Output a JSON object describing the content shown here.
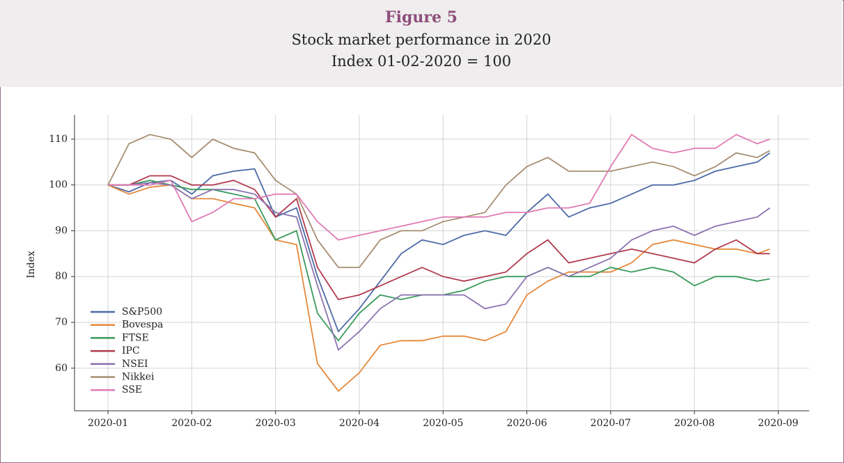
{
  "chart_data": {
    "type": "line",
    "title": "Figure 5",
    "subtitle": "Stock market performance in 2020",
    "subtitle_2": "Index 01-02-2020 = 100",
    "y_label": "Index",
    "grid": true,
    "legend": "lower left",
    "x": [
      1,
      1.25,
      1.5,
      1.75,
      2,
      2.25,
      2.5,
      2.75,
      3,
      3.25,
      3.5,
      3.75,
      4,
      4.25,
      4.5,
      4.75,
      5,
      5.25,
      5.5,
      5.75,
      6,
      6.25,
      6.5,
      6.75,
      7,
      7.25,
      7.5,
      7.75,
      8,
      8.25,
      8.5,
      8.75,
      8.9
    ],
    "xlim": [
      0.6,
      9.37
    ],
    "xticks": [
      {
        "value": 1,
        "label": "2020-01"
      },
      {
        "value": 2,
        "label": "2020-02"
      },
      {
        "value": 3,
        "label": "2020-03"
      },
      {
        "value": 4,
        "label": "2020-04"
      },
      {
        "value": 5,
        "label": "2020-05"
      },
      {
        "value": 6,
        "label": "2020-06"
      },
      {
        "value": 7,
        "label": "2020-07"
      },
      {
        "value": 8,
        "label": "2020-08"
      },
      {
        "value": 9,
        "label": "2020-09"
      }
    ],
    "ylim": [
      50.7,
      115.3
    ],
    "yticks": [
      60,
      70,
      80,
      90,
      100,
      110
    ],
    "series": [
      {
        "name": "S&P500",
        "color": "#4c6aa6",
        "values": [
          100,
          98.5,
          100.5,
          101,
          98,
          102,
          103,
          103.5,
          93,
          95,
          80,
          68,
          73,
          79,
          85,
          88,
          87,
          89,
          90,
          89,
          94,
          98,
          93,
          95,
          96,
          98,
          100,
          100,
          101,
          103,
          104,
          105,
          107
        ]
      },
      {
        "name": "Bovespa",
        "color": "#e5883a",
        "values": [
          100,
          98,
          99.5,
          100,
          97,
          97,
          96,
          95,
          88,
          87,
          61,
          55,
          59,
          65,
          66,
          66,
          67,
          67,
          66,
          68,
          76,
          79,
          81,
          81,
          81,
          83,
          87,
          88,
          87,
          86,
          86,
          85,
          86
        ]
      },
      {
        "name": "FTSE",
        "color": "#3a9a5b",
        "values": [
          100,
          100,
          101,
          100,
          99,
          99,
          98,
          97,
          88,
          90,
          72,
          66,
          72,
          76,
          75,
          76,
          76,
          77,
          79,
          80,
          80,
          82,
          80,
          80,
          82,
          81,
          82,
          81,
          78,
          80,
          80,
          79,
          79.5
        ]
      },
      {
        "name": "IPC",
        "color": "#b03a4e",
        "values": [
          100,
          100,
          102,
          102,
          100,
          100,
          101,
          99,
          93,
          97,
          82,
          75,
          76,
          78,
          80,
          82,
          80,
          79,
          80,
          81,
          85,
          88,
          83,
          84,
          85,
          86,
          85,
          84,
          83,
          86,
          88,
          85,
          85
        ]
      },
      {
        "name": "NSEI",
        "color": "#8a72b0",
        "values": [
          100,
          100,
          100.5,
          100,
          97,
          99,
          99,
          98,
          94,
          93,
          78,
          64,
          68,
          73,
          76,
          76,
          76,
          76,
          73,
          74,
          80,
          82,
          80,
          82,
          84,
          88,
          90,
          91,
          89,
          91,
          92,
          93,
          95
        ]
      },
      {
        "name": "Nikkei",
        "color": "#a68e72",
        "values": [
          100,
          109,
          111,
          110,
          106,
          110,
          108,
          107,
          101,
          98,
          88,
          82,
          82,
          88,
          90,
          90,
          92,
          93,
          94,
          100,
          104,
          106,
          103,
          103,
          103,
          104,
          105,
          104,
          102,
          104,
          107,
          106,
          107.5
        ]
      },
      {
        "name": "SSE",
        "color": "#e07ab5",
        "values": [
          100,
          100,
          100,
          101,
          92,
          94,
          97,
          97,
          98,
          98,
          92,
          88,
          89,
          90,
          91,
          92,
          93,
          93,
          93,
          94,
          94,
          95,
          95,
          96,
          104,
          111,
          108,
          107,
          108,
          108,
          111,
          109,
          110
        ]
      }
    ]
  }
}
